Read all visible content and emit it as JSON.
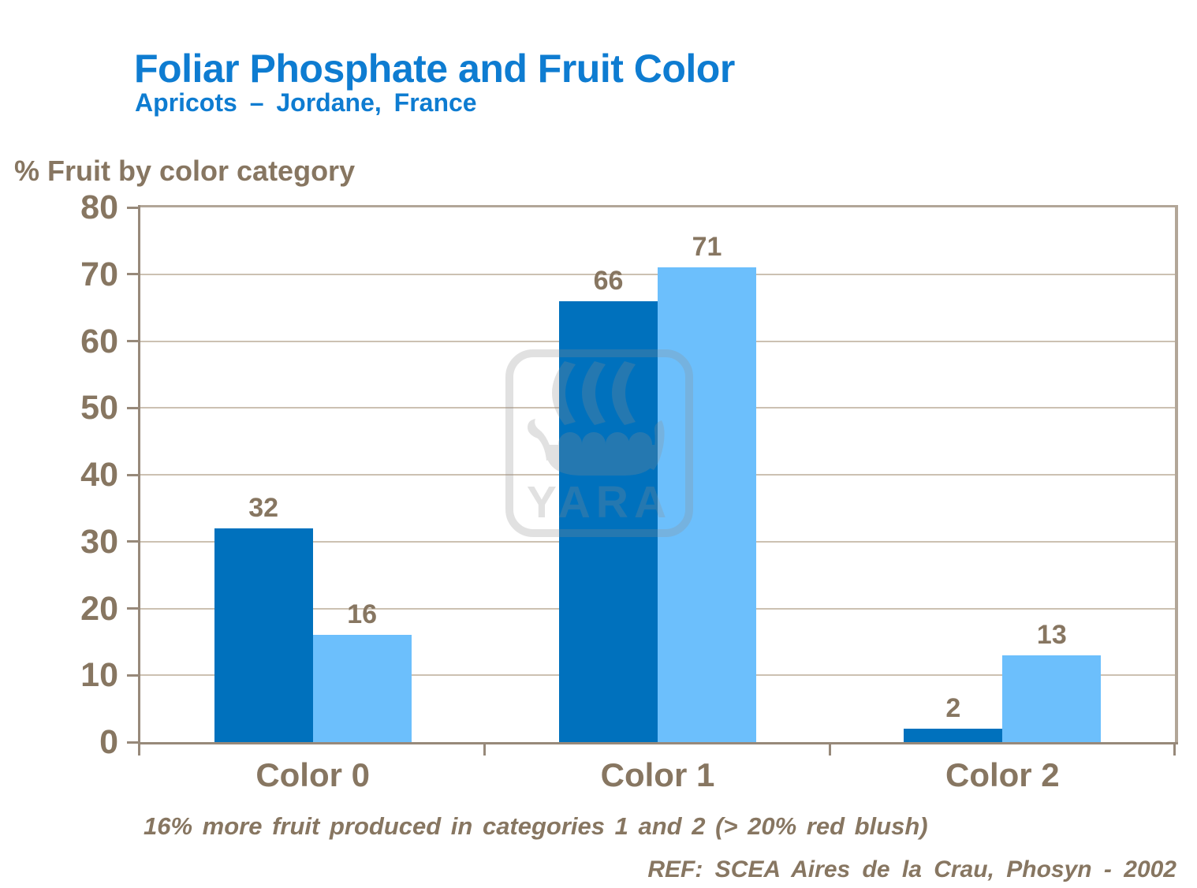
{
  "slide": {
    "title": "Foliar Phosphate and Fruit Color",
    "subtitle": "Apricots – Jordane, France",
    "y_axis_title": "% Fruit by color category",
    "note": "16% more fruit produced in categories 1 and 2 (> 20% red blush)",
    "reference": "REF: SCEA Aires de la Crau, Phosyn - 2002",
    "watermark_text": "YARA"
  },
  "colors": {
    "title_blue": "#0E7CD1",
    "dark_bar_blue": "#0071BD",
    "light_bar_blue": "#6CBFFC",
    "text_brown": "#877661",
    "axis_brown": "#97897A",
    "grid_taupe": "#CCC1B2",
    "plot_border_taupe": "#B2A698",
    "watermark_gray": "#E4E4E4"
  },
  "chart_data": {
    "type": "bar",
    "title": "Foliar Phosphate and Fruit Color",
    "subtitle": "Apricots – Jordane, France",
    "ylabel": "% Fruit by color category",
    "xlabel": "",
    "categories": [
      "Color 0",
      "Color 1",
      "Color 2"
    ],
    "series": [
      {
        "color": "#0071BD",
        "values": [
          32,
          66,
          2
        ]
      },
      {
        "color": "#6CBFFC",
        "values": [
          16,
          71,
          13
        ]
      }
    ],
    "ylim": [
      0,
      80
    ],
    "yticks": [
      0,
      10,
      20,
      30,
      40,
      50,
      60,
      70,
      80
    ],
    "grid": true,
    "legend": false,
    "annotations": [
      "16% more fruit produced in categories 1 and 2 (> 20% red blush)",
      "REF: SCEA Aires de la Crau, Phosyn - 2002"
    ]
  }
}
